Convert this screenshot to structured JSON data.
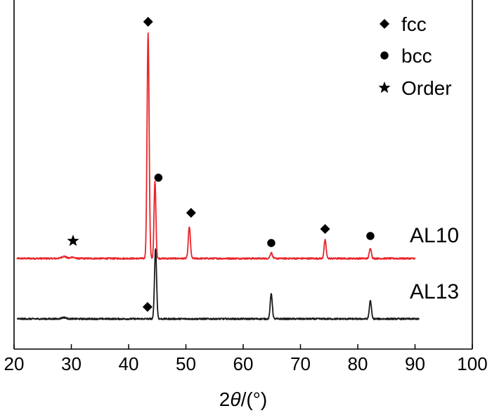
{
  "chart_data": {
    "type": "line",
    "xlabel_prefix": "2",
    "xlabel_symbol": "θ",
    "xlabel_suffix": "/(°)",
    "xlim": [
      20,
      100
    ],
    "xticks": [
      20,
      30,
      40,
      50,
      60,
      70,
      80,
      90,
      100
    ],
    "y_ticks_shown": false,
    "grid": false,
    "legend_position": "top-right",
    "legend": [
      {
        "symbol": "diamond",
        "label": "fcc"
      },
      {
        "symbol": "circle",
        "label": "bcc"
      },
      {
        "symbol": "star",
        "label": "Order"
      }
    ],
    "series": [
      {
        "name": "AL10",
        "color": "#e8262b",
        "baseline": 0,
        "peaks": [
          {
            "x": 28.7,
            "height": 3,
            "width": 0.4
          },
          {
            "x": 30.2,
            "height": 2,
            "width": 0.3
          },
          {
            "x": 43.4,
            "height": 320,
            "width": 0.18
          },
          {
            "x": 44.6,
            "height": 110,
            "width": 0.16
          },
          {
            "x": 50.6,
            "height": 45,
            "width": 0.18
          },
          {
            "x": 64.9,
            "height": 8,
            "width": 0.2
          },
          {
            "x": 74.3,
            "height": 26,
            "width": 0.18
          },
          {
            "x": 82.2,
            "height": 15,
            "width": 0.18
          }
        ],
        "markers": [
          {
            "symbol": "star",
            "x": 30.3,
            "height": 25
          },
          {
            "symbol": "diamond",
            "x": 43.4,
            "height": 337
          },
          {
            "symbol": "circle",
            "x": 45.2,
            "height": 115
          },
          {
            "symbol": "diamond",
            "x": 50.9,
            "height": 65
          },
          {
            "symbol": "circle",
            "x": 64.9,
            "height": 22
          },
          {
            "symbol": "diamond",
            "x": 74.3,
            "height": 42
          },
          {
            "symbol": "circle",
            "x": 82.2,
            "height": 32
          }
        ]
      },
      {
        "name": "AL13",
        "color": "#1a1a1a",
        "baseline": 0,
        "peaks": [
          {
            "x": 28.7,
            "height": 2,
            "width": 0.4
          },
          {
            "x": 44.7,
            "height": 100,
            "width": 0.18
          },
          {
            "x": 64.9,
            "height": 36,
            "width": 0.18
          },
          {
            "x": 82.2,
            "height": 26,
            "width": 0.18
          }
        ],
        "markers": [
          {
            "symbol": "diamond",
            "x": 43.3,
            "height": 17
          }
        ]
      }
    ]
  }
}
